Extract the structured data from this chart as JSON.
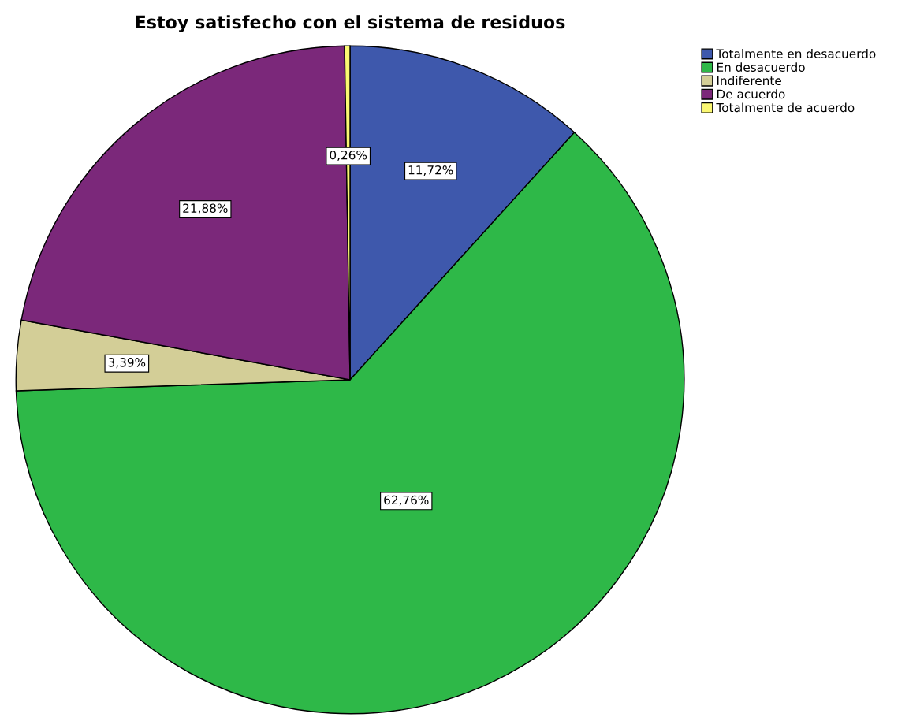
{
  "chart_data": {
    "type": "pie",
    "title": "Estoy satisfecho con el sistema de residuos",
    "categories": [
      "Totalmente en desacuerdo",
      "En desacuerdo",
      "Indiferente",
      "De acuerdo",
      "Totalmente de acuerdo"
    ],
    "values": [
      11.72,
      62.76,
      3.39,
      21.88,
      0.26
    ],
    "value_labels": [
      "11,72%",
      "62,76%",
      "3,39%",
      "21,88%",
      "0,26%"
    ],
    "colors": [
      "#3e58ac",
      "#2eb848",
      "#d3ce97",
      "#7b287a",
      "#fbf873"
    ],
    "legend": "top right"
  }
}
